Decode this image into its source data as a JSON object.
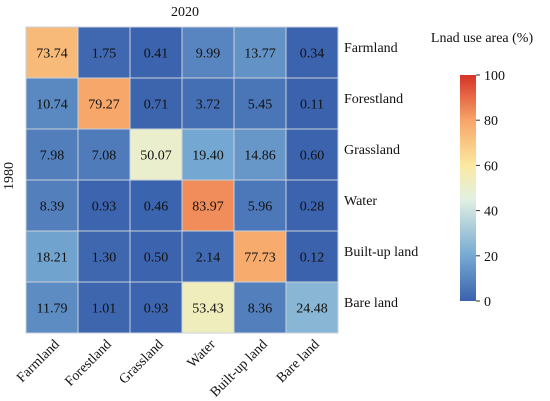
{
  "chart_data": {
    "type": "heatmap",
    "title": "2020",
    "ylabel": "1980",
    "row_categories": [
      "Farmland",
      "Forestland",
      "Grassland",
      "Water",
      "Built-up land",
      "Bare land"
    ],
    "col_categories": [
      "Farmland",
      "Forestland",
      "Grassland",
      "Water",
      "Built-up land",
      "Bare land"
    ],
    "values": [
      [
        73.74,
        1.75,
        0.41,
        9.99,
        13.77,
        0.34
      ],
      [
        10.74,
        79.27,
        0.71,
        3.72,
        5.45,
        0.11
      ],
      [
        7.98,
        7.08,
        50.07,
        19.4,
        14.86,
        0.6
      ],
      [
        8.39,
        0.93,
        0.46,
        83.97,
        5.96,
        0.28
      ],
      [
        18.21,
        1.3,
        0.5,
        2.14,
        77.73,
        0.12
      ],
      [
        11.79,
        1.01,
        0.93,
        53.43,
        8.36,
        24.48
      ]
    ],
    "value_labels": [
      [
        "73.74",
        "1.75",
        "0.41",
        "9.99",
        "13.77",
        "0.34"
      ],
      [
        "10.74",
        "79.27",
        "0.71",
        "3.72",
        "5.45",
        "0.11"
      ],
      [
        "7.98",
        "7.08",
        "50.07",
        "19.40",
        "14.86",
        "0.60"
      ],
      [
        "8.39",
        "0.93",
        "0.46",
        "83.97",
        "5.96",
        "0.28"
      ],
      [
        "18.21",
        "1.30",
        "0.50",
        "2.14",
        "77.73",
        "0.12"
      ],
      [
        "11.79",
        "1.01",
        "0.93",
        "53.43",
        "8.36",
        "24.48"
      ]
    ],
    "colorbar": {
      "title": "Lnad use area (%)",
      "range": [
        0,
        100
      ],
      "ticks": [
        "100",
        "80",
        "60",
        "40",
        "20",
        "0"
      ],
      "colors": [
        "#3a62ad",
        "#76a9d2",
        "#e2f0e2",
        "#fbeaa1",
        "#f7a467",
        "#d83227"
      ]
    }
  }
}
